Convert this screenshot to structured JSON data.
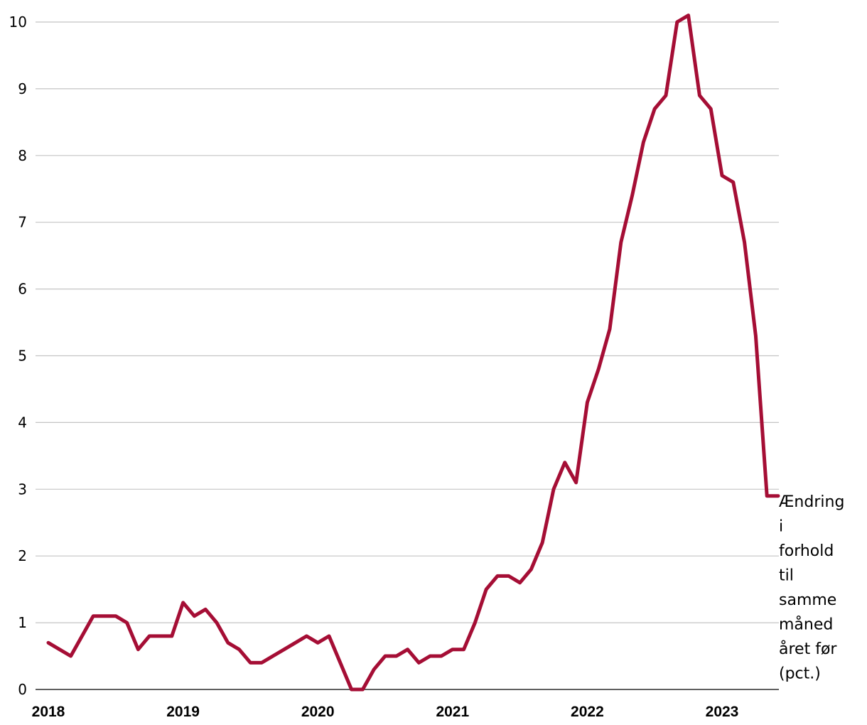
{
  "colors": {
    "series": "#a50e35",
    "grid": "#c4c4c4",
    "axis": "#000000"
  },
  "chart_data": {
    "type": "line",
    "title": "",
    "xlabel": "",
    "ylabel": "",
    "ylim": [
      0,
      10
    ],
    "yticks": [
      "0",
      "1",
      "2",
      "3",
      "4",
      "5",
      "6",
      "7",
      "8",
      "9",
      "10"
    ],
    "xticks": [
      "2018",
      "2019",
      "2020",
      "2021",
      "2022",
      "2023"
    ],
    "grid": "horizontal",
    "series_label_position": "right end of line",
    "series": [
      {
        "label_lines": [
          "Ændring",
          "i",
          "forhold",
          "til",
          "samme",
          "måned",
          "året før",
          "(pct.)"
        ],
        "x": [
          "2018-01",
          "2018-02",
          "2018-03",
          "2018-04",
          "2018-05",
          "2018-06",
          "2018-07",
          "2018-08",
          "2018-09",
          "2018-10",
          "2018-11",
          "2018-12",
          "2019-01",
          "2019-02",
          "2019-03",
          "2019-04",
          "2019-05",
          "2019-06",
          "2019-07",
          "2019-08",
          "2019-09",
          "2019-10",
          "2019-11",
          "2019-12",
          "2020-01",
          "2020-02",
          "2020-03",
          "2020-04",
          "2020-05",
          "2020-06",
          "2020-07",
          "2020-08",
          "2020-09",
          "2020-10",
          "2020-11",
          "2020-12",
          "2021-01",
          "2021-02",
          "2021-03",
          "2021-04",
          "2021-05",
          "2021-06",
          "2021-07",
          "2021-08",
          "2021-09",
          "2021-10",
          "2021-11",
          "2021-12",
          "2022-01",
          "2022-02",
          "2022-03",
          "2022-04",
          "2022-05",
          "2022-06",
          "2022-07",
          "2022-08",
          "2022-09",
          "2022-10",
          "2022-11",
          "2022-12",
          "2023-01",
          "2023-02",
          "2023-03",
          "2023-04",
          "2023-05",
          "2023-06"
        ],
        "values": [
          0.7,
          0.6,
          0.5,
          0.8,
          1.1,
          1.1,
          1.1,
          1.0,
          0.6,
          0.8,
          0.8,
          0.8,
          1.3,
          1.1,
          1.2,
          1.0,
          0.7,
          0.6,
          0.4,
          0.4,
          0.5,
          0.6,
          0.7,
          0.8,
          0.7,
          0.8,
          0.4,
          0.0,
          0.0,
          0.3,
          0.5,
          0.5,
          0.6,
          0.4,
          0.5,
          0.5,
          0.6,
          0.6,
          1.0,
          1.5,
          1.7,
          1.7,
          1.6,
          1.8,
          2.2,
          3.0,
          3.4,
          3.1,
          4.3,
          4.8,
          5.4,
          6.7,
          7.4,
          8.2,
          8.7,
          8.9,
          10.0,
          10.1,
          8.9,
          8.7,
          7.7,
          7.6,
          6.7,
          5.3,
          2.9,
          2.9
        ]
      }
    ]
  }
}
